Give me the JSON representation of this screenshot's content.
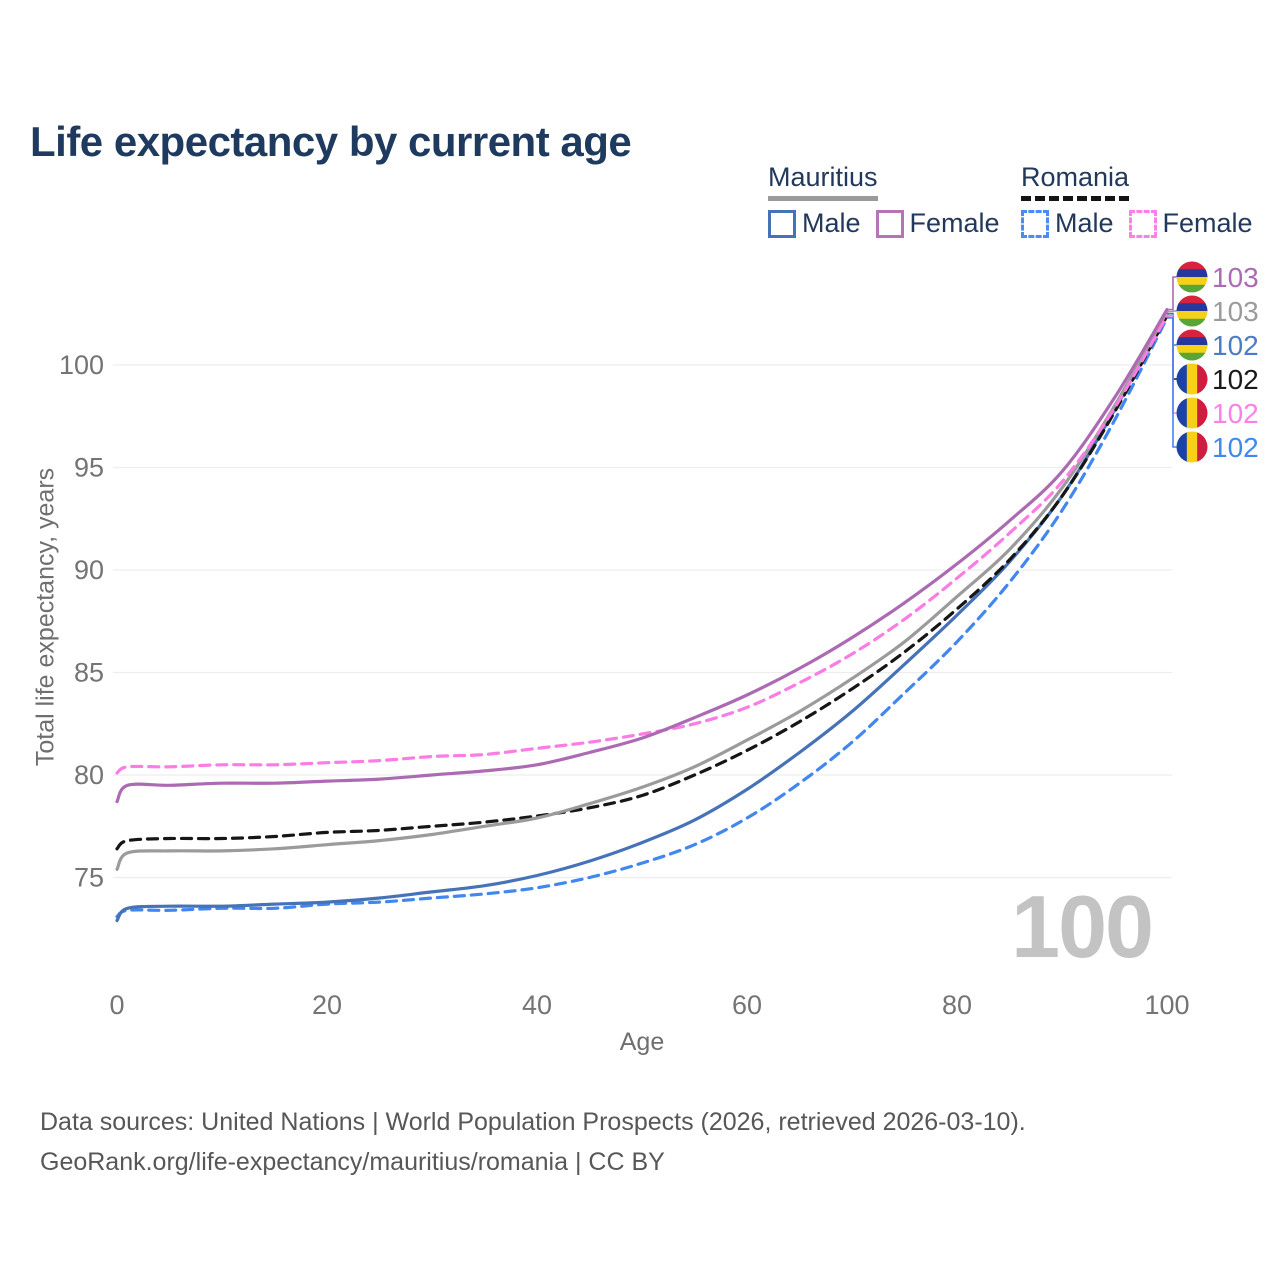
{
  "header": {
    "title": "Life expectancy by current age"
  },
  "legend": {
    "position": "top-right",
    "groups": [
      {
        "country": "Mauritius",
        "line_style": "solid",
        "underline_color": "#9a9a9a",
        "items": [
          {
            "label": "Male",
            "color": "#4673b8",
            "dashed": false
          },
          {
            "label": "Female",
            "color": "#b673b6",
            "dashed": false
          }
        ]
      },
      {
        "country": "Romania",
        "line_style": "dashed",
        "underline_color": "#141414",
        "items": [
          {
            "label": "Male",
            "color": "#4b8bf5",
            "dashed": true
          },
          {
            "label": "Female",
            "color": "#fd80e9",
            "dashed": true
          }
        ]
      }
    ]
  },
  "chart_data": {
    "type": "line",
    "title": "Life expectancy by current age",
    "xlabel": "Age",
    "ylabel": "Total life expectancy, years",
    "x_ticks": [
      0,
      20,
      40,
      60,
      80,
      100
    ],
    "y_ticks": [
      75,
      80,
      85,
      90,
      95,
      100
    ],
    "xlim": [
      0,
      100
    ],
    "ylim": [
      72.5,
      103.5
    ],
    "grid": "horizontal",
    "legend_position": "top-right",
    "x": [
      0,
      1,
      5,
      10,
      15,
      20,
      25,
      30,
      35,
      40,
      45,
      50,
      55,
      60,
      65,
      70,
      75,
      80,
      85,
      90,
      95,
      100
    ],
    "series": [
      {
        "id": "ro_male",
        "name": "Romania Male",
        "country": "Romania",
        "sex": "Male",
        "color": "#4287f0",
        "dashed": true,
        "values": [
          73.1,
          73.4,
          73.4,
          73.5,
          73.5,
          73.7,
          73.8,
          74.0,
          74.2,
          74.5,
          75.0,
          75.7,
          76.6,
          77.9,
          79.6,
          81.6,
          84.0,
          86.5,
          89.4,
          92.9,
          97.3,
          102.3
        ]
      },
      {
        "id": "mu_male",
        "name": "Mauritius Male",
        "country": "Mauritius",
        "sex": "Male",
        "color": "#4673b8",
        "dashed": false,
        "values": [
          72.9,
          73.5,
          73.6,
          73.6,
          73.7,
          73.8,
          74.0,
          74.3,
          74.6,
          75.1,
          75.8,
          76.7,
          77.8,
          79.3,
          81.1,
          83.1,
          85.4,
          87.8,
          90.4,
          93.6,
          97.8,
          102.5
        ]
      },
      {
        "id": "ro_both",
        "name": "Romania Both sexes",
        "country": "Romania",
        "sex": "Both",
        "color": "#161616",
        "dashed": true,
        "values": [
          76.4,
          76.8,
          76.9,
          76.9,
          77.0,
          77.2,
          77.3,
          77.5,
          77.7,
          78.0,
          78.4,
          79.0,
          80.0,
          81.2,
          82.6,
          84.2,
          86.0,
          88.1,
          90.5,
          93.6,
          97.7,
          102.4
        ]
      },
      {
        "id": "mu_both",
        "name": "Mauritius Both sexes",
        "country": "Mauritius",
        "sex": "Both",
        "color": "#9b9b9b",
        "dashed": false,
        "values": [
          75.4,
          76.2,
          76.3,
          76.3,
          76.4,
          76.6,
          76.8,
          77.1,
          77.5,
          77.9,
          78.6,
          79.4,
          80.4,
          81.7,
          83.1,
          84.7,
          86.5,
          88.7,
          91.0,
          94.0,
          98.0,
          102.6
        ]
      },
      {
        "id": "ro_female",
        "name": "Romania Female",
        "country": "Romania",
        "sex": "Female",
        "color": "#fb7ce4",
        "dashed": true,
        "values": [
          80.1,
          80.4,
          80.4,
          80.5,
          80.5,
          80.6,
          80.7,
          80.9,
          81.0,
          81.3,
          81.6,
          82.0,
          82.5,
          83.3,
          84.5,
          85.9,
          87.6,
          89.6,
          91.8,
          94.3,
          97.9,
          102.4
        ]
      },
      {
        "id": "mu_female",
        "name": "Mauritius Female",
        "country": "Mauritius",
        "sex": "Female",
        "color": "#ac6ab2",
        "dashed": false,
        "values": [
          78.7,
          79.5,
          79.5,
          79.6,
          79.6,
          79.7,
          79.8,
          80.0,
          80.2,
          80.5,
          81.1,
          81.8,
          82.8,
          83.9,
          85.2,
          86.7,
          88.4,
          90.3,
          92.4,
          94.8,
          98.4,
          102.7
        ]
      }
    ],
    "end_labels": [
      {
        "series_id": "mu_female",
        "flag": "mauritius",
        "value": "103",
        "color": "#ac6ab2"
      },
      {
        "series_id": "mu_both",
        "flag": "mauritius",
        "value": "103",
        "color": "#9b9b9b"
      },
      {
        "series_id": "mu_male",
        "flag": "mauritius",
        "value": "102",
        "color": "#4a7cc7"
      },
      {
        "series_id": "ro_both",
        "flag": "romania",
        "value": "102",
        "color": "#1a1a1a"
      },
      {
        "series_id": "ro_female",
        "flag": "romania",
        "value": "102",
        "color": "#fd80e9"
      },
      {
        "series_id": "ro_male",
        "flag": "romania",
        "value": "102",
        "color": "#4287f0"
      }
    ],
    "flags": {
      "mauritius": {
        "orientation": "horizontal",
        "colors": [
          "#d8233f",
          "#27379c",
          "#f7d117",
          "#58a638"
        ]
      },
      "romania": {
        "orientation": "vertical",
        "colors": [
          "#1b43a5",
          "#f7d117",
          "#ce1d3e"
        ]
      }
    }
  },
  "annotations": {
    "age_counter": "100"
  },
  "palette": {
    "title_text": "#1e3a5f",
    "legend_text": "#22395c",
    "grid_line": "#ededed",
    "tick_text": "#747474",
    "axis_title_text": "#6f6f6f",
    "watermark_text": "#c3c3c3",
    "footer_text": "#575757"
  },
  "footer": {
    "line1": "Data sources: United Nations | World Population Prospects (2026, retrieved 2026-03-10).",
    "line2": "GeoRank.org/life-expectancy/mauritius/romania | CC BY"
  }
}
